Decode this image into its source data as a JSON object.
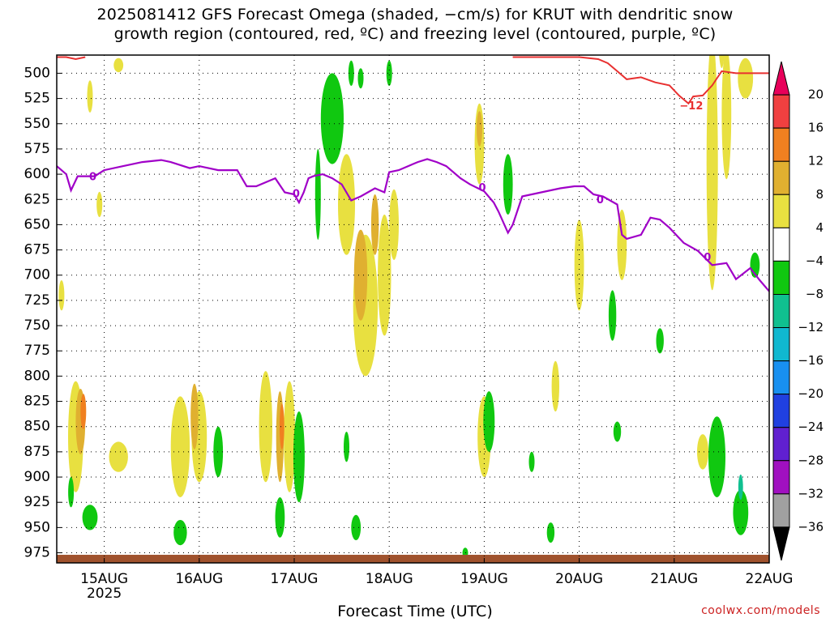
{
  "header": {
    "title_line1": "2025081412 GFS Forecast Omega (shaded, −cm/s) for KRUT with dendritic snow",
    "title_line2": "growth region (contoured, red, ºC) and freezing level (contoured, purple, ºC)"
  },
  "footer": {
    "xaxis_title": "Forecast Time (UTC)",
    "credit": "coolwx.com/models"
  },
  "chart_data": {
    "type": "heatmap",
    "title": "2025081412 GFS Forecast Omega (shaded, −cm/s) for KRUT with dendritic snow growth region (contoured, red, ºC) and freezing level (contoured, purple, ºC)",
    "xlabel": "Forecast Time (UTC)",
    "ylabel": "",
    "x_ticks": [
      "15AUG",
      "16AUG",
      "17AUG",
      "18AUG",
      "19AUG",
      "20AUG",
      "21AUG",
      "22AUG"
    ],
    "x_tick_sublabel": "2025",
    "x_range_days": [
      14.5,
      22.0
    ],
    "y_ticks": [
      500,
      525,
      550,
      575,
      600,
      625,
      650,
      675,
      700,
      725,
      750,
      775,
      800,
      825,
      850,
      875,
      900,
      925,
      950,
      975
    ],
    "y_range_hpa": [
      482,
      985
    ],
    "grid": true,
    "colorbar": {
      "labels": [
        "20",
        "16",
        "12",
        "8",
        "4",
        "−4",
        "−8",
        "−12",
        "−16",
        "−20",
        "−24",
        "−28",
        "−32",
        "−36"
      ],
      "colors": [
        "#e8005a",
        "#f04040",
        "#f08020",
        "#e0b030",
        "#e8e040",
        "#ffffff",
        "#10c810",
        "#10c090",
        "#10b8d0",
        "#1890f0",
        "#2040e0",
        "#6020d0",
        "#a010c0",
        "#a0a0a0",
        "#000000"
      ]
    },
    "freezing_level": {
      "label": "0",
      "color": "#a000c8",
      "points": [
        [
          14.5,
          592
        ],
        [
          14.6,
          600
        ],
        [
          14.65,
          616
        ],
        [
          14.72,
          602
        ],
        [
          14.9,
          602
        ],
        [
          15.0,
          596
        ],
        [
          15.2,
          592
        ],
        [
          15.4,
          588
        ],
        [
          15.6,
          586
        ],
        [
          15.7,
          588
        ],
        [
          15.9,
          594
        ],
        [
          16.0,
          592
        ],
        [
          16.2,
          596
        ],
        [
          16.4,
          596
        ],
        [
          16.5,
          612
        ],
        [
          16.6,
          612
        ],
        [
          16.8,
          604
        ],
        [
          16.9,
          618
        ],
        [
          17.0,
          620
        ],
        [
          17.05,
          628
        ],
        [
          17.1,
          618
        ],
        [
          17.15,
          604
        ],
        [
          17.2,
          602
        ],
        [
          17.3,
          600
        ],
        [
          17.4,
          604
        ],
        [
          17.5,
          610
        ],
        [
          17.6,
          626
        ],
        [
          17.7,
          622
        ],
        [
          17.85,
          614
        ],
        [
          17.95,
          618
        ],
        [
          18.0,
          598
        ],
        [
          18.1,
          596
        ],
        [
          18.2,
          592
        ],
        [
          18.3,
          588
        ],
        [
          18.4,
          585
        ],
        [
          18.5,
          588
        ],
        [
          18.6,
          592
        ],
        [
          18.75,
          604
        ],
        [
          18.85,
          610
        ],
        [
          19.0,
          617
        ],
        [
          19.1,
          628
        ],
        [
          19.15,
          637
        ],
        [
          19.25,
          658
        ],
        [
          19.3,
          650
        ],
        [
          19.4,
          622
        ],
        [
          19.5,
          620
        ],
        [
          19.6,
          618
        ],
        [
          19.8,
          614
        ],
        [
          19.95,
          612
        ],
        [
          20.05,
          612
        ],
        [
          20.15,
          620
        ],
        [
          20.25,
          622
        ],
        [
          20.4,
          630
        ],
        [
          20.45,
          660
        ],
        [
          20.5,
          664
        ],
        [
          20.65,
          660
        ],
        [
          20.75,
          643
        ],
        [
          20.85,
          645
        ],
        [
          20.95,
          653
        ],
        [
          21.1,
          668
        ],
        [
          21.25,
          676
        ],
        [
          21.4,
          690
        ],
        [
          21.55,
          688
        ],
        [
          21.65,
          704
        ],
        [
          21.8,
          693
        ],
        [
          21.9,
          705
        ],
        [
          22.0,
          716
        ]
      ]
    },
    "dgz_contour": {
      "label": "−12",
      "color": "#e83030",
      "segment_left": [
        [
          14.5,
          484
        ],
        [
          14.6,
          484
        ],
        [
          14.7,
          486
        ],
        [
          14.8,
          484
        ]
      ],
      "segment_right": [
        [
          19.3,
          484
        ],
        [
          19.6,
          484
        ],
        [
          20.0,
          484
        ],
        [
          20.2,
          486
        ],
        [
          20.3,
          490
        ],
        [
          20.4,
          498
        ],
        [
          20.5,
          506
        ],
        [
          20.65,
          504
        ],
        [
          20.8,
          509
        ],
        [
          20.95,
          512
        ],
        [
          21.05,
          522
        ],
        [
          21.15,
          530
        ],
        [
          21.2,
          523
        ],
        [
          21.3,
          522
        ],
        [
          21.4,
          512
        ],
        [
          21.5,
          498
        ],
        [
          21.65,
          500
        ],
        [
          22.0,
          500
        ]
      ]
    },
    "shading": [
      {
        "level": "4",
        "color": "#e8e040",
        "blobs": [
          [
            14.55,
            720,
            0.03,
            30
          ],
          [
            14.85,
            523,
            0.03,
            32
          ],
          [
            15.15,
            492,
            0.05,
            14
          ],
          [
            14.95,
            630,
            0.03,
            25
          ],
          [
            15.15,
            880,
            0.1,
            30
          ],
          [
            14.7,
            860,
            0.08,
            110
          ],
          [
            15.8,
            870,
            0.1,
            100
          ],
          [
            16.0,
            860,
            0.08,
            90
          ],
          [
            16.7,
            850,
            0.07,
            110
          ],
          [
            16.95,
            860,
            0.06,
            110
          ],
          [
            17.35,
            545,
            0.03,
            25
          ],
          [
            17.55,
            630,
            0.09,
            100
          ],
          [
            17.75,
            730,
            0.13,
            140
          ],
          [
            17.95,
            700,
            0.07,
            120
          ],
          [
            18.05,
            650,
            0.05,
            70
          ],
          [
            19.0,
            860,
            0.07,
            80
          ],
          [
            18.95,
            570,
            0.05,
            80
          ],
          [
            20.0,
            690,
            0.05,
            90
          ],
          [
            19.75,
            810,
            0.04,
            50
          ],
          [
            20.45,
            670,
            0.05,
            70
          ],
          [
            21.4,
            590,
            0.06,
            250
          ],
          [
            21.55,
            540,
            0.05,
            130
          ],
          [
            21.75,
            505,
            0.08,
            40
          ],
          [
            21.3,
            875,
            0.06,
            35
          ],
          [
            21.5,
            420,
            0.05,
            150
          ]
        ]
      },
      {
        "level": "8",
        "color": "#e0b030",
        "blobs": [
          [
            14.75,
            845,
            0.05,
            65
          ],
          [
            15.95,
            840,
            0.04,
            65
          ],
          [
            16.85,
            860,
            0.04,
            90
          ],
          [
            17.7,
            700,
            0.07,
            90
          ],
          [
            17.85,
            650,
            0.04,
            60
          ],
          [
            18.95,
            555,
            0.03,
            35
          ]
        ]
      },
      {
        "level": "12",
        "color": "#f08020",
        "blobs": [
          [
            14.78,
            835,
            0.03,
            35
          ],
          [
            16.87,
            850,
            0.025,
            45
          ]
        ]
      },
      {
        "level": "-4",
        "color": "#10c810",
        "blobs": [
          [
            17.4,
            545,
            0.12,
            90
          ],
          [
            17.25,
            620,
            0.03,
            90
          ],
          [
            17.05,
            880,
            0.06,
            90
          ],
          [
            16.85,
            940,
            0.05,
            40
          ],
          [
            16.2,
            875,
            0.05,
            50
          ],
          [
            15.8,
            955,
            0.07,
            25
          ],
          [
            14.85,
            940,
            0.08,
            25
          ],
          [
            14.65,
            915,
            0.03,
            30
          ],
          [
            17.65,
            950,
            0.05,
            25
          ],
          [
            17.55,
            870,
            0.03,
            30
          ],
          [
            19.05,
            845,
            0.06,
            60
          ],
          [
            19.25,
            610,
            0.05,
            60
          ],
          [
            20.35,
            740,
            0.04,
            50
          ],
          [
            20.85,
            765,
            0.04,
            25
          ],
          [
            21.45,
            880,
            0.09,
            80
          ],
          [
            21.7,
            935,
            0.08,
            45
          ],
          [
            21.85,
            690,
            0.05,
            25
          ],
          [
            17.6,
            500,
            0.03,
            25
          ],
          [
            17.7,
            505,
            0.03,
            20
          ],
          [
            19.7,
            955,
            0.04,
            20
          ],
          [
            18.0,
            500,
            0.03,
            25
          ],
          [
            18.8,
            975,
            0.03,
            10
          ],
          [
            19.5,
            885,
            0.03,
            20
          ],
          [
            20.4,
            855,
            0.04,
            20
          ]
        ]
      },
      {
        "level": "-8",
        "color": "#10c090",
        "blobs": [
          [
            21.7,
            910,
            0.025,
            25
          ]
        ]
      }
    ],
    "terrain": {
      "color": "#a0522d"
    }
  }
}
